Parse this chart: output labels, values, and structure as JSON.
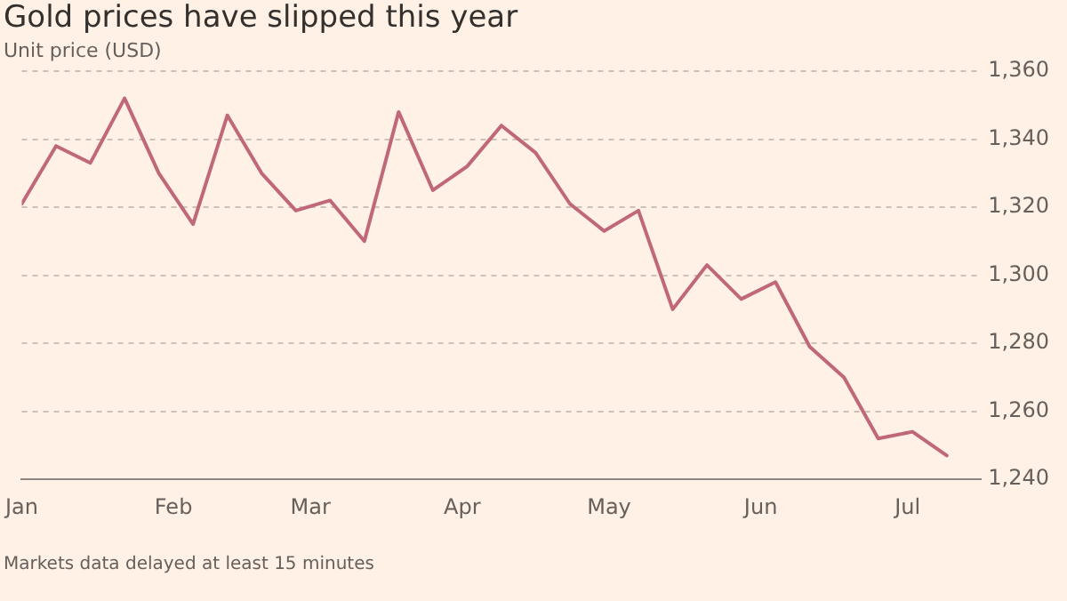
{
  "chart_data": {
    "type": "line",
    "title": "Gold prices have slipped this year",
    "subtitle": "Unit price (USD)",
    "annotations": [
      "Markets data delayed at least 15 minutes"
    ],
    "x": [
      "--01-01",
      "--01-08",
      "--01-15",
      "--01-22",
      "--01-29",
      "--02-05",
      "--02-12",
      "--02-19",
      "--02-26",
      "--03-05",
      "--03-12",
      "--03-19",
      "--03-26",
      "--04-02",
      "--04-09",
      "--04-16",
      "--04-23",
      "--04-30",
      "--05-07",
      "--05-14",
      "--05-21",
      "--05-28",
      "--06-04",
      "--06-11",
      "--06-18",
      "--06-25",
      "--07-02",
      "--07-09"
    ],
    "series": [
      {
        "color": "#c0687a",
        "values": [
          1321,
          1338,
          1333,
          1352,
          1330,
          1315,
          1347,
          1330,
          1319,
          1322,
          1310,
          1348,
          1325,
          1332,
          1344,
          1336,
          1321,
          1313,
          1319,
          1290,
          1303,
          1293,
          1298,
          1279,
          1270,
          1252,
          1254,
          1247
        ]
      }
    ],
    "xlim": [
      "--01-01",
      "--07-16"
    ],
    "xticks": [
      {
        "value": "--01-01",
        "label": "Jan"
      },
      {
        "value": "--02-01",
        "label": "Feb"
      },
      {
        "value": "--03-01",
        "label": "Mar"
      },
      {
        "value": "--04-01",
        "label": "Apr"
      },
      {
        "value": "--05-01",
        "label": "May"
      },
      {
        "value": "--06-01",
        "label": "Jun"
      },
      {
        "value": "--07-01",
        "label": "Jul"
      }
    ],
    "ylim": [
      1240,
      1360
    ],
    "yticks": [
      {
        "value": 1240,
        "label": "1,240"
      },
      {
        "value": 1260,
        "label": "1,260"
      },
      {
        "value": 1280,
        "label": "1,280"
      },
      {
        "value": 1300,
        "label": "1,300"
      },
      {
        "value": 1320,
        "label": "1,320"
      },
      {
        "value": 1340,
        "label": "1,340"
      },
      {
        "value": 1360,
        "label": "1,360"
      }
    ],
    "grid": "y",
    "legend": false,
    "marker": "none",
    "line_style": "solid"
  }
}
